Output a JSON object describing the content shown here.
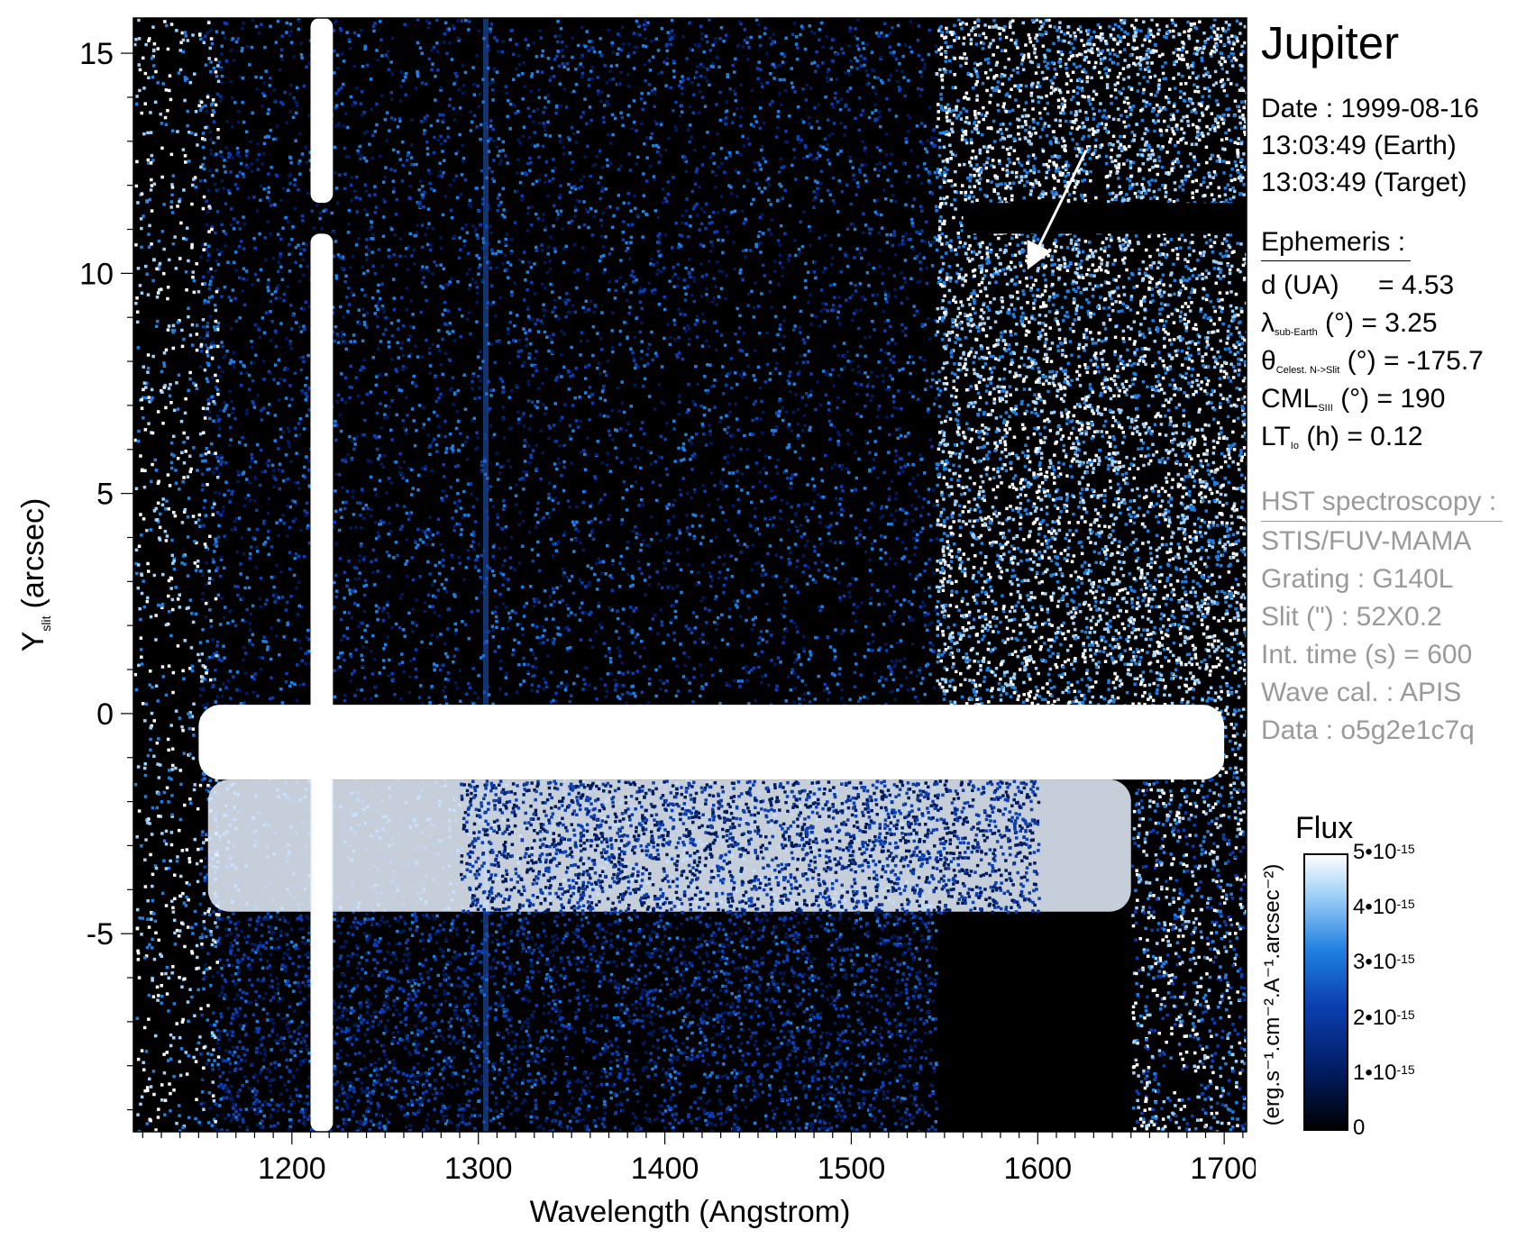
{
  "chart_data": {
    "type": "heatmap",
    "title": "Jupiter",
    "xlabel": "Wavelength (Angstrom)",
    "ylabel_main": "Y",
    "ylabel_sub": "slit",
    "ylabel_unit": "(arcsec)",
    "xlim": [
      1115,
      1712
    ],
    "ylim": [
      -9.5,
      15.8
    ],
    "xticks": [
      1200,
      1300,
      1400,
      1500,
      1600,
      1700
    ],
    "xtick_labels": [
      "1200",
      "1300",
      "1400",
      "1500",
      "1600",
      "1700"
    ],
    "yticks": [
      15,
      10,
      5,
      0,
      -5
    ],
    "ytick_labels": [
      "15",
      "10",
      "5",
      "0",
      "-5"
    ],
    "features": [
      {
        "kind": "vertical_band",
        "x_range": [
          1210,
          1222
        ],
        "y_range": [
          -9.5,
          15.8
        ],
        "level": "saturated",
        "gap_y": [
          10.9,
          11.6
        ]
      },
      {
        "kind": "vertical_line",
        "x": 1304,
        "level": "faint"
      },
      {
        "kind": "horizontal_band",
        "x_range": [
          1150,
          1700
        ],
        "y_range": [
          -1.5,
          0.2
        ],
        "level": "saturated"
      },
      {
        "kind": "horizontal_band",
        "x_range": [
          1155,
          1650
        ],
        "y_range": [
          -4.5,
          -1.5
        ],
        "level": "bright"
      },
      {
        "kind": "noise_region",
        "x_range": [
          1545,
          1712
        ],
        "y_range": [
          -1,
          15.8
        ],
        "level": "bright"
      },
      {
        "kind": "dark_stripe",
        "x_range": [
          1560,
          1712
        ],
        "y_range": [
          10.9,
          11.6
        ],
        "level": "dark"
      }
    ],
    "colorbar": {
      "title": "Flux",
      "unit": "(erg.s⁻¹.cm⁻².A⁻¹.arcsec⁻²)",
      "range": [
        0,
        5e-15
      ],
      "colors": [
        "#000000",
        "#001a5c",
        "#0b3fb0",
        "#1f7fe0",
        "#9fd0f8",
        "#ffffff"
      ],
      "ticks": [
        {
          "value": 5e-15,
          "mantissa": "5•10",
          "exp": "-15"
        },
        {
          "value": 4e-15,
          "mantissa": "4•10",
          "exp": "-15"
        },
        {
          "value": 3e-15,
          "mantissa": "3•10",
          "exp": "-15"
        },
        {
          "value": 2e-15,
          "mantissa": "2•10",
          "exp": "-15"
        },
        {
          "value": 1e-15,
          "mantissa": "1•10",
          "exp": "-15"
        },
        {
          "value": 0,
          "mantissa": "0",
          "exp": ""
        }
      ]
    },
    "arrow": {
      "from": [
        1626,
        12.8
      ],
      "to": [
        1597,
        10.3
      ],
      "color": "#ffffff"
    }
  },
  "info": {
    "title": "Jupiter",
    "date": "Date : 1999-08-16",
    "time_earth": "13:03:49 (Earth)",
    "time_target": "13:03:49 (Target)",
    "ephemeris_header": "Ephemeris :",
    "d_label": "d (UA)",
    "d_value": "= 4.53",
    "lambda_symbol": "λ",
    "lambda_sub": "sub-Earth",
    "lambda_rest": " (°)  = 3.25",
    "theta_symbol": "θ",
    "theta_sub": "Celest. N->Slit",
    "theta_rest": " (°) = -175.7",
    "cml_symbol": "CML",
    "cml_sub": "SIII",
    "cml_rest": " (°) = 190",
    "lt_symbol": "LT",
    "lt_sub": "Io",
    "lt_rest": " (h) = 0.12",
    "hst_header": "HST spectroscopy :",
    "instrument": "STIS/FUV-MAMA",
    "grating": "Grating : G140L",
    "slit": "Slit (\") : 52X0.2",
    "int_time": "Int. time (s) = 600",
    "wave_cal": "Wave cal. : APIS",
    "data_id": "Data : o5g2e1c7q"
  },
  "colors": {
    "text_grey": "#9a9a9a",
    "background": "#000000"
  }
}
